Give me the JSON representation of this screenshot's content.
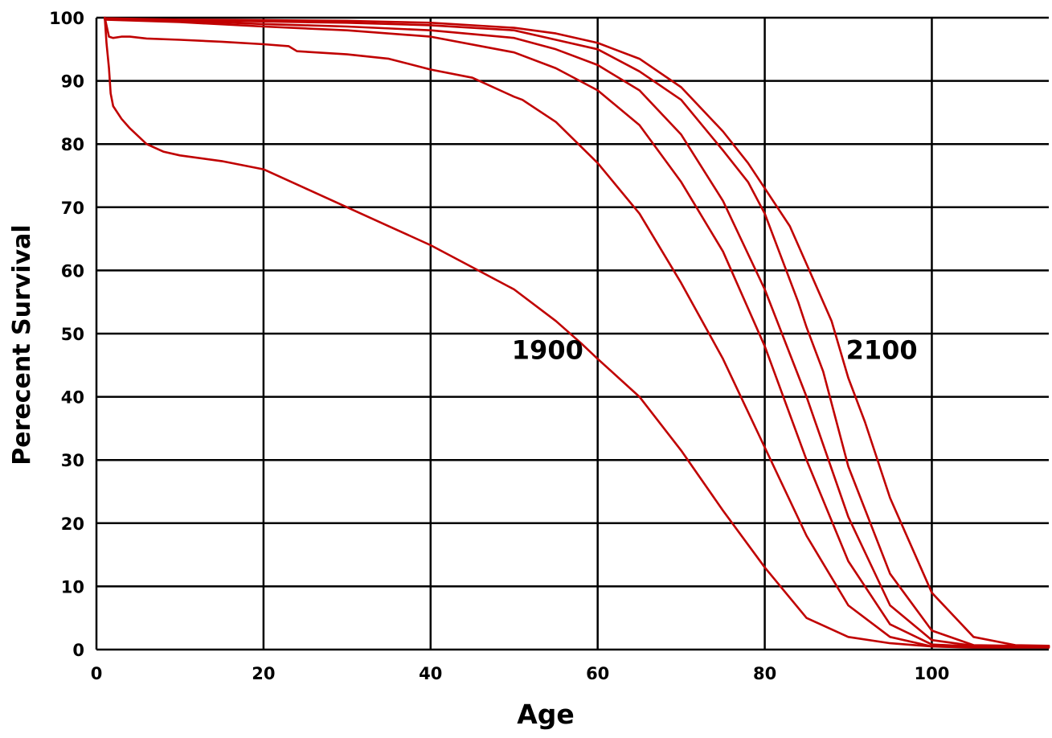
{
  "chart_data": {
    "type": "line",
    "xlabel": "Age",
    "ylabel": "Perecent Survival",
    "xlim": [
      0,
      114
    ],
    "ylim": [
      0,
      100
    ],
    "xticks": [
      0,
      20,
      40,
      60,
      80,
      100
    ],
    "yticks": [
      0,
      10,
      20,
      30,
      40,
      50,
      60,
      70,
      80,
      90,
      100
    ],
    "grid": true,
    "line_color": "#c00000",
    "annotations": [
      {
        "text": "1900",
        "x": 54,
        "y": 46
      },
      {
        "text": "2100",
        "x": 94,
        "y": 46
      }
    ],
    "series": [
      {
        "x": [
          1,
          1.2,
          1.5,
          1.7,
          2,
          3,
          4,
          6,
          8,
          10,
          15,
          20,
          25,
          30,
          35,
          40,
          45,
          50,
          55,
          58,
          60,
          65,
          70,
          75,
          80,
          85,
          90,
          95,
          100,
          105,
          110,
          114
        ],
        "y": [
          100,
          96,
          92,
          88,
          86,
          84,
          82.5,
          80,
          78.8,
          78.2,
          77.3,
          76,
          73,
          70,
          67,
          64,
          60.5,
          57,
          52,
          48.5,
          46,
          40,
          31.5,
          22,
          13,
          5,
          2,
          1,
          0.5,
          0.3,
          0.3,
          0.3
        ]
      },
      {
        "x": [
          1,
          1.5,
          2,
          3,
          4,
          6,
          10,
          15,
          20,
          23,
          24,
          30,
          35,
          40,
          45,
          50,
          51,
          55,
          60,
          65,
          70,
          75,
          80,
          85,
          90,
          95,
          100,
          105,
          110,
          114
        ],
        "y": [
          100,
          97,
          96.8,
          97,
          97,
          96.7,
          96.5,
          96.2,
          95.8,
          95.5,
          94.7,
          94.2,
          93.5,
          91.8,
          90.5,
          87.5,
          87,
          83.5,
          77,
          69,
          58,
          46,
          32,
          18,
          7,
          2,
          0.5,
          0.4,
          0.4,
          0.4
        ]
      },
      {
        "x": [
          1,
          10,
          20,
          30,
          40,
          50,
          55,
          60,
          65,
          70,
          75,
          80,
          85,
          90,
          95,
          100,
          105,
          110,
          114
        ],
        "y": [
          99.7,
          99.3,
          98.6,
          98,
          97,
          94.5,
          92,
          88.5,
          83,
          74,
          63,
          48,
          30,
          14,
          4,
          0.8,
          0.5,
          0.5,
          0.5
        ]
      },
      {
        "x": [
          1,
          10,
          20,
          30,
          40,
          50,
          55,
          60,
          65,
          70,
          75,
          80,
          85,
          90,
          95,
          100,
          105,
          110,
          114
        ],
        "y": [
          99.8,
          99.5,
          99,
          98.6,
          98,
          96.8,
          95,
          92.5,
          88.5,
          81.5,
          71,
          57,
          40,
          21,
          7,
          1.5,
          0.6,
          0.5,
          0.5
        ]
      },
      {
        "x": [
          1,
          10,
          20,
          30,
          40,
          50,
          55,
          60,
          65,
          70,
          75,
          78,
          80,
          82,
          84,
          85,
          87,
          90,
          95,
          100,
          105,
          110,
          114
        ],
        "y": [
          99.9,
          99.6,
          99.4,
          99.2,
          98.8,
          98,
          96.5,
          95,
          91.5,
          87,
          79,
          74,
          69,
          62,
          55,
          51,
          44,
          29,
          12,
          3,
          0.7,
          0.6,
          0.6
        ]
      },
      {
        "x": [
          1,
          10,
          20,
          30,
          40,
          50,
          55,
          60,
          65,
          70,
          75,
          78,
          80,
          83,
          85,
          88,
          90,
          92,
          95,
          100,
          105,
          110,
          114
        ],
        "y": [
          99.9,
          99.7,
          99.6,
          99.5,
          99.2,
          98.4,
          97.5,
          96,
          93.5,
          89,
          82,
          77,
          73,
          67,
          61,
          52,
          43,
          36,
          24,
          9,
          2,
          0.7,
          0.6
        ]
      }
    ]
  }
}
